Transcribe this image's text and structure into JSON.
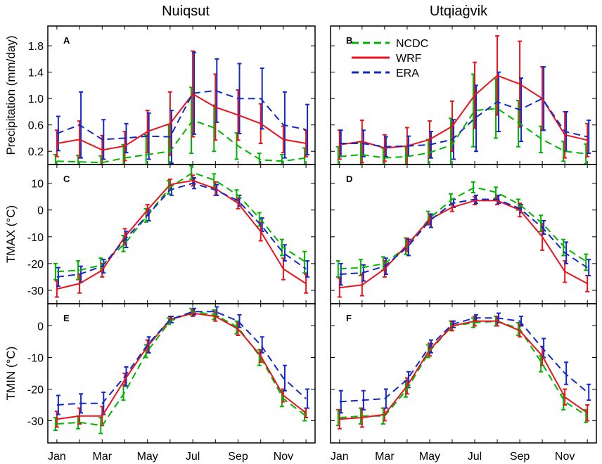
{
  "column_titles": [
    "Nuiqsut",
    "Utqiaġvik"
  ],
  "x_tick_labels": [
    "Jan",
    "Mar",
    "May",
    "Jul",
    "Sep",
    "Nov"
  ],
  "legend": [
    {
      "name": "NCDC",
      "color": "#00b400",
      "dash": true
    },
    {
      "name": "WRF",
      "color": "#e8141e",
      "dash": false
    },
    {
      "name": "ERA",
      "color": "#1428c8",
      "dash": true
    }
  ],
  "chart_data": [
    {
      "type": "line",
      "panel": "A",
      "station": "Nuiqsut",
      "ylabel": "Precipitation (mm/day)",
      "ylim": [
        0,
        2.1
      ],
      "yticks": [
        0.2,
        0.6,
        1.0,
        1.4,
        1.8
      ],
      "ytick_labels": [
        "0.2",
        "0.6",
        "1.0",
        "1.4",
        "1.8"
      ],
      "x": [
        1,
        2,
        3,
        4,
        5,
        6,
        7,
        8,
        9,
        10,
        11,
        12
      ],
      "series": [
        {
          "name": "NCDC",
          "values": [
            0.05,
            0.04,
            0.03,
            0.1,
            0.15,
            0.2,
            0.67,
            0.55,
            0.28,
            0.07,
            0.05,
            0.1
          ],
          "err": [
            0.1,
            0.1,
            0.1,
            0.2,
            0.3,
            0.4,
            0.5,
            0.35,
            0.2,
            0.1,
            0.1,
            0.15
          ]
        },
        {
          "name": "WRF",
          "values": [
            0.32,
            0.38,
            0.22,
            0.28,
            0.5,
            0.62,
            1.07,
            0.87,
            0.75,
            0.62,
            0.38,
            0.32
          ],
          "err": [
            0.2,
            0.28,
            0.22,
            0.22,
            0.32,
            0.48,
            0.65,
            0.5,
            0.38,
            0.3,
            0.2,
            0.2
          ]
        },
        {
          "name": "ERA",
          "values": [
            0.47,
            0.6,
            0.38,
            0.4,
            0.43,
            0.42,
            1.08,
            1.12,
            1.0,
            1.0,
            0.6,
            0.53
          ],
          "err": [
            0.26,
            0.5,
            0.3,
            0.22,
            0.35,
            0.4,
            0.62,
            0.48,
            0.53,
            0.46,
            0.5,
            0.38
          ]
        }
      ]
    },
    {
      "type": "line",
      "panel": "B",
      "station": "Utqiaġvik",
      "ylabel": "",
      "ylim": [
        0,
        2.1
      ],
      "yticks": [
        0.2,
        0.6,
        1.0,
        1.4,
        1.8
      ],
      "ytick_labels": [
        "",
        "",
        "",
        "",
        ""
      ],
      "x": [
        1,
        2,
        3,
        4,
        5,
        6,
        7,
        8,
        9,
        10,
        11,
        12
      ],
      "series": [
        {
          "name": "NCDC",
          "values": [
            0.12,
            0.15,
            0.1,
            0.12,
            0.18,
            0.3,
            0.82,
            0.85,
            0.62,
            0.38,
            0.2,
            0.16
          ],
          "err": [
            0.15,
            0.2,
            0.15,
            0.15,
            0.2,
            0.4,
            0.55,
            0.45,
            0.35,
            0.2,
            0.15,
            0.15
          ]
        },
        {
          "name": "WRF",
          "values": [
            0.3,
            0.35,
            0.25,
            0.28,
            0.38,
            0.58,
            1.05,
            1.35,
            1.22,
            1.0,
            0.45,
            0.37
          ],
          "err": [
            0.22,
            0.32,
            0.2,
            0.28,
            0.28,
            0.38,
            0.5,
            0.6,
            0.65,
            0.48,
            0.35,
            0.25
          ]
        },
        {
          "name": "ERA",
          "values": [
            0.32,
            0.32,
            0.27,
            0.28,
            0.3,
            0.38,
            0.7,
            0.95,
            0.83,
            1.0,
            0.5,
            0.42
          ],
          "err": [
            0.2,
            0.2,
            0.15,
            0.15,
            0.2,
            0.3,
            0.5,
            0.45,
            0.48,
            0.48,
            0.3,
            0.25
          ]
        }
      ]
    },
    {
      "type": "line",
      "panel": "C",
      "station": "Nuiqsut",
      "ylabel": "TMAX (°C)",
      "ylim": [
        -35,
        17
      ],
      "yticks": [
        -30,
        -20,
        -10,
        0,
        10
      ],
      "ytick_labels": [
        "-30",
        "-20",
        "-10",
        "0",
        "10"
      ],
      "x": [
        1,
        2,
        3,
        4,
        5,
        6,
        7,
        8,
        9,
        10,
        11,
        12
      ],
      "series": [
        {
          "name": "NCDC",
          "values": [
            -23,
            -22.5,
            -20.5,
            -12.5,
            -2,
            8.5,
            14,
            11,
            5.5,
            -3.5,
            -14,
            -19.5
          ],
          "err": [
            3,
            3.5,
            2.5,
            3,
            2.5,
            2.5,
            2.5,
            2.5,
            2,
            2.5,
            3,
            4
          ]
        },
        {
          "name": "WRF",
          "values": [
            -29.5,
            -27.5,
            -22.5,
            -10,
            0,
            9.5,
            11,
            8,
            2.5,
            -8,
            -22,
            -27.5
          ],
          "err": [
            3,
            3.5,
            2.5,
            3,
            2,
            2,
            2,
            2.5,
            2,
            3.5,
            4,
            3.5
          ]
        },
        {
          "name": "ERA",
          "values": [
            -25,
            -24,
            -21,
            -11,
            -2,
            7.5,
            10,
            7.5,
            3.5,
            -5.5,
            -16,
            -22
          ],
          "err": [
            3.5,
            3,
            2.5,
            3,
            2,
            2,
            2,
            2,
            2,
            2.5,
            3,
            3
          ]
        }
      ]
    },
    {
      "type": "line",
      "panel": "D",
      "station": "Utqiaġvik",
      "ylabel": "",
      "ylim": [
        -35,
        17
      ],
      "yticks": [
        -30,
        -20,
        -10,
        0,
        10
      ],
      "ytick_labels": [
        "",
        "",
        "",
        "",
        ""
      ],
      "x": [
        1,
        2,
        3,
        4,
        5,
        6,
        7,
        8,
        9,
        10,
        11,
        12
      ],
      "series": [
        {
          "name": "NCDC",
          "values": [
            -22,
            -21.5,
            -20,
            -13.5,
            -3,
            4,
            8.5,
            6.5,
            2,
            -5,
            -14,
            -19.5
          ],
          "err": [
            3,
            3,
            2.5,
            3,
            2.5,
            2,
            2,
            2,
            2,
            3,
            3,
            3
          ]
        },
        {
          "name": "WRF",
          "values": [
            -29,
            -28,
            -22,
            -13,
            -3.5,
            1,
            3.5,
            3.5,
            0,
            -10,
            -23,
            -27.5
          ],
          "err": [
            3.5,
            4,
            3,
            2.5,
            2,
            1.5,
            1.5,
            1.5,
            2.5,
            5,
            4,
            3
          ]
        },
        {
          "name": "ERA",
          "values": [
            -24,
            -23.5,
            -21,
            -14,
            -4,
            2.5,
            4,
            4,
            0.5,
            -6.5,
            -16,
            -21.5
          ],
          "err": [
            4,
            3,
            3,
            3,
            2.5,
            1.5,
            1.5,
            1.5,
            1.5,
            2.5,
            4,
            3
          ]
        }
      ]
    },
    {
      "type": "line",
      "panel": "E",
      "station": "Nuiqsut",
      "ylabel": "TMIN (°C)",
      "ylim": [
        -37,
        7
      ],
      "yticks": [
        -30,
        -20,
        -10,
        0
      ],
      "ytick_labels": [
        "-30",
        "-20",
        "-10",
        "0"
      ],
      "x": [
        1,
        2,
        3,
        4,
        5,
        6,
        7,
        8,
        9,
        10,
        11,
        12
      ],
      "series": [
        {
          "name": "NCDC",
          "values": [
            -31,
            -30.5,
            -31.5,
            -21,
            -8,
            1.5,
            4.5,
            3.5,
            -0.5,
            -10,
            -23,
            -28.5
          ],
          "err": [
            2,
            2,
            2.5,
            2.5,
            2,
            1,
            1,
            1.5,
            2,
            2.5,
            2.5,
            1.5
          ]
        },
        {
          "name": "WRF",
          "values": [
            -29.5,
            -28.5,
            -28.5,
            -17,
            -6.5,
            2,
            4,
            3,
            -1,
            -9.5,
            -22,
            -27.5
          ],
          "err": [
            2.5,
            2.5,
            3,
            2,
            2,
            1,
            1,
            1.5,
            2,
            2,
            2,
            1.5
          ]
        },
        {
          "name": "ERA",
          "values": [
            -25,
            -24.5,
            -24.5,
            -16,
            -6,
            2,
            4.5,
            4.5,
            1.5,
            -6,
            -16.5,
            -23
          ],
          "err": [
            3,
            3,
            3.5,
            3,
            2.5,
            1,
            1,
            1.5,
            2,
            2.5,
            4,
            3
          ]
        }
      ]
    },
    {
      "type": "line",
      "panel": "F",
      "station": "Utqiaġvik",
      "ylabel": "",
      "ylim": [
        -37,
        7
      ],
      "yticks": [
        -30,
        -20,
        -10,
        0
      ],
      "ytick_labels": [
        "",
        "",
        "",
        ""
      ],
      "x": [
        1,
        2,
        3,
        4,
        5,
        6,
        7,
        8,
        9,
        10,
        11,
        12
      ],
      "series": [
        {
          "name": "NCDC",
          "values": [
            -29,
            -28.5,
            -28.5,
            -20,
            -8,
            0,
            1,
            1.5,
            -1,
            -12,
            -24,
            -28.5
          ],
          "err": [
            2.5,
            2.5,
            2.5,
            2.5,
            2,
            1.5,
            1.5,
            1.5,
            2,
            2.5,
            2.5,
            2
          ]
        },
        {
          "name": "WRF",
          "values": [
            -29.5,
            -29,
            -28,
            -19,
            -7.5,
            0,
            1.5,
            1.5,
            -1.5,
            -9.5,
            -22.5,
            -27.5
          ],
          "err": [
            3,
            3,
            2,
            2.5,
            2,
            1.5,
            1.5,
            1.5,
            2,
            3,
            2.5,
            2.5
          ]
        },
        {
          "name": "ERA",
          "values": [
            -24,
            -23.5,
            -23,
            -17,
            -6.5,
            0.5,
            2.5,
            2.5,
            1.5,
            -7,
            -15,
            -21
          ],
          "err": [
            3.5,
            3,
            3,
            2.5,
            2,
            1,
            1,
            1.5,
            1.5,
            3,
            3.5,
            2.5
          ]
        }
      ]
    }
  ]
}
